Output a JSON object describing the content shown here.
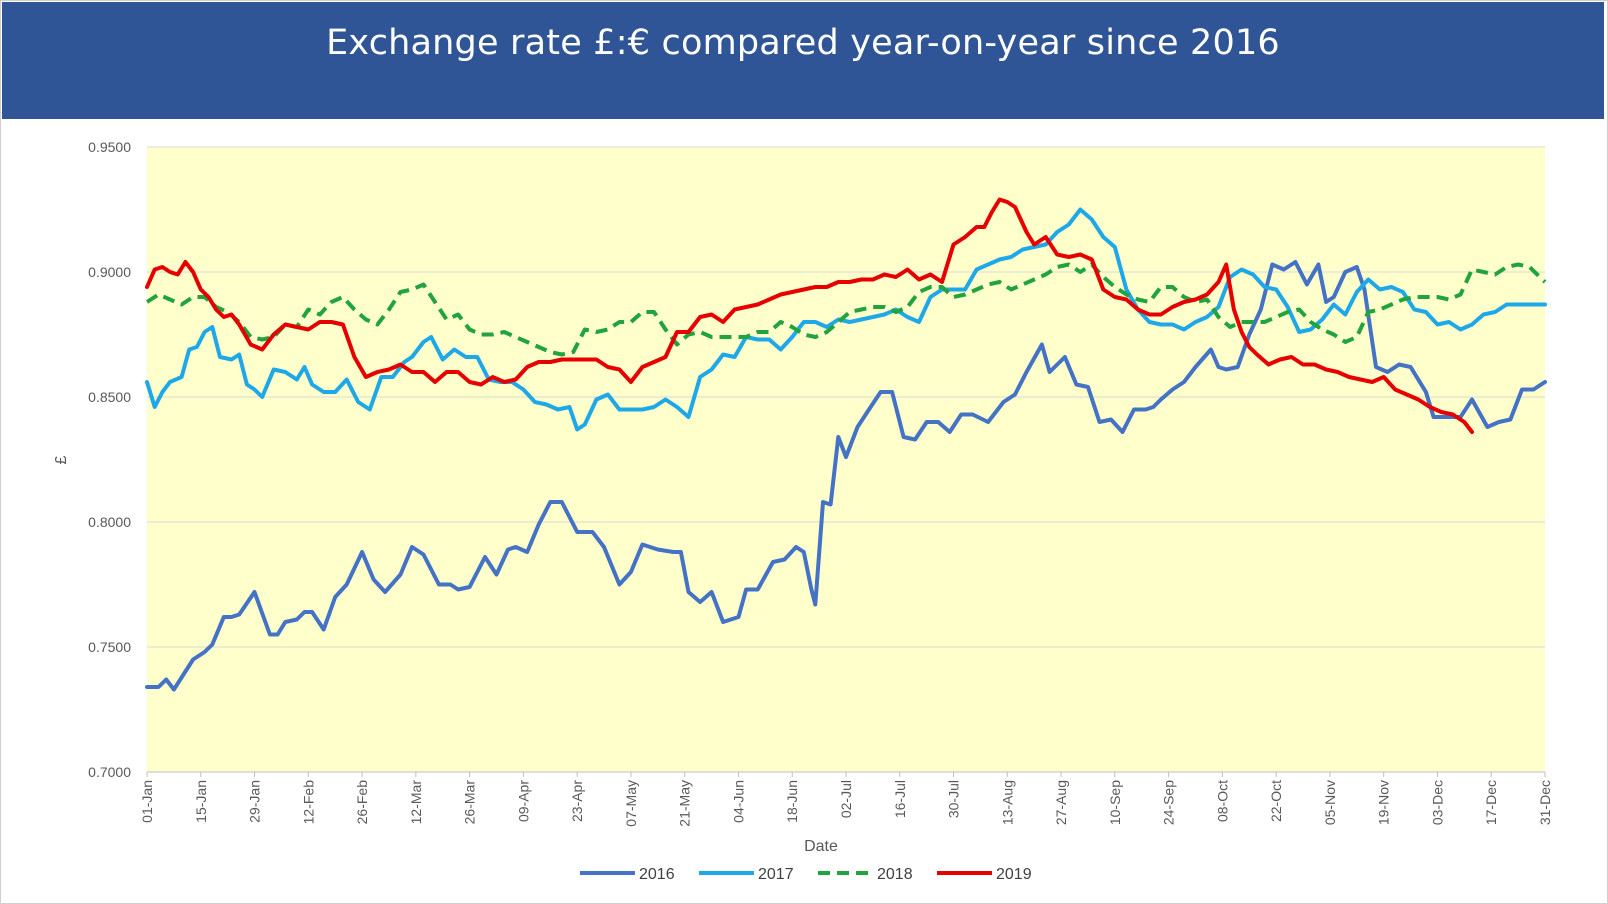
{
  "chart_data": {
    "type": "line",
    "title": "Exchange rate £:€ compared year-on-year since 2016",
    "xlabel": "Date",
    "ylabel": "£",
    "ylim": [
      0.7,
      0.95
    ],
    "yticks": [
      "0.7000",
      "0.7500",
      "0.8000",
      "0.8500",
      "0.9000",
      "0.9500"
    ],
    "xlim": [
      1,
      365
    ],
    "xticks": [
      {
        "day": 1,
        "label": "01-Jan"
      },
      {
        "day": 15,
        "label": "15-Jan"
      },
      {
        "day": 29,
        "label": "29-Jan"
      },
      {
        "day": 43,
        "label": "12-Feb"
      },
      {
        "day": 57,
        "label": "26-Feb"
      },
      {
        "day": 71,
        "label": "12-Mar"
      },
      {
        "day": 85,
        "label": "26-Mar"
      },
      {
        "day": 99,
        "label": "09-Apr"
      },
      {
        "day": 113,
        "label": "23-Apr"
      },
      {
        "day": 127,
        "label": "07-May"
      },
      {
        "day": 141,
        "label": "21-May"
      },
      {
        "day": 155,
        "label": "04-Jun"
      },
      {
        "day": 169,
        "label": "18-Jun"
      },
      {
        "day": 183,
        "label": "02-Jul"
      },
      {
        "day": 197,
        "label": "16-Jul"
      },
      {
        "day": 211,
        "label": "30-Jul"
      },
      {
        "day": 225,
        "label": "13-Aug"
      },
      {
        "day": 239,
        "label": "27-Aug"
      },
      {
        "day": 253,
        "label": "10-Sep"
      },
      {
        "day": 267,
        "label": "24-Sep"
      },
      {
        "day": 281,
        "label": "08-Oct"
      },
      {
        "day": 295,
        "label": "22-Oct"
      },
      {
        "day": 309,
        "label": "05-Nov"
      },
      {
        "day": 323,
        "label": "19-Nov"
      },
      {
        "day": 337,
        "label": "03-Dec"
      },
      {
        "day": 351,
        "label": "17-Dec"
      },
      {
        "day": 365,
        "label": "31-Dec"
      }
    ],
    "grid": true,
    "plot_background": "#FFFFCC",
    "legend_position": "bottom",
    "series": [
      {
        "name": "2016",
        "color": "#4472C4",
        "dash": "solid",
        "x": [
          1,
          4,
          6,
          8,
          13,
          16,
          18,
          21,
          23,
          25,
          29,
          33,
          35,
          37,
          40,
          42,
          44,
          47,
          50,
          53,
          57,
          60,
          63,
          67,
          70,
          73,
          77,
          80,
          82,
          85,
          89,
          92,
          95,
          97,
          100,
          103,
          106,
          109,
          113,
          117,
          120,
          124,
          127,
          130,
          134,
          138,
          140,
          142,
          145,
          148,
          151,
          155,
          157,
          160,
          164,
          167,
          170,
          172,
          174,
          175,
          177,
          179,
          181,
          183,
          186,
          189,
          192,
          195,
          198,
          201,
          204,
          207,
          210,
          213,
          216,
          220,
          224,
          227,
          230,
          234,
          236,
          240,
          243,
          246,
          249,
          252,
          255,
          258,
          261,
          263,
          265,
          268,
          271,
          274,
          278,
          280,
          282,
          285,
          288,
          291,
          294,
          297,
          300,
          303,
          306,
          308,
          310,
          313,
          316,
          318,
          321,
          324,
          327,
          330,
          334,
          336,
          340,
          343,
          346,
          350,
          353,
          356,
          359,
          362,
          365
        ],
        "values": [
          0.734,
          0.734,
          0.737,
          0.733,
          0.745,
          0.748,
          0.751,
          0.762,
          0.762,
          0.763,
          0.772,
          0.755,
          0.755,
          0.76,
          0.761,
          0.764,
          0.764,
          0.757,
          0.77,
          0.775,
          0.788,
          0.777,
          0.772,
          0.779,
          0.79,
          0.787,
          0.775,
          0.775,
          0.773,
          0.774,
          0.786,
          0.779,
          0.789,
          0.79,
          0.788,
          0.799,
          0.808,
          0.808,
          0.796,
          0.796,
          0.79,
          0.775,
          0.78,
          0.791,
          0.789,
          0.788,
          0.788,
          0.772,
          0.768,
          0.772,
          0.76,
          0.762,
          0.773,
          0.773,
          0.784,
          0.785,
          0.79,
          0.788,
          0.773,
          0.767,
          0.808,
          0.807,
          0.834,
          0.826,
          0.838,
          0.845,
          0.852,
          0.852,
          0.834,
          0.833,
          0.84,
          0.84,
          0.836,
          0.843,
          0.843,
          0.84,
          0.848,
          0.851,
          0.86,
          0.871,
          0.86,
          0.866,
          0.855,
          0.854,
          0.84,
          0.841,
          0.836,
          0.845,
          0.845,
          0.846,
          0.849,
          0.853,
          0.856,
          0.862,
          0.869,
          0.862,
          0.861,
          0.862,
          0.875,
          0.885,
          0.903,
          0.901,
          0.904,
          0.895,
          0.903,
          0.888,
          0.89,
          0.9,
          0.902,
          0.893,
          0.862,
          0.86,
          0.863,
          0.862,
          0.852,
          0.842,
          0.842,
          0.842,
          0.849,
          0.838,
          0.84,
          0.841,
          0.853,
          0.853,
          0.856
        ]
      },
      {
        "name": "2017",
        "color": "#1FA8E8",
        "dash": "solid",
        "x": [
          1,
          3,
          5,
          7,
          10,
          12,
          14,
          16,
          18,
          20,
          23,
          25,
          27,
          29,
          31,
          34,
          37,
          40,
          42,
          44,
          47,
          50,
          53,
          56,
          59,
          62,
          65,
          68,
          70,
          73,
          75,
          78,
          81,
          84,
          87,
          90,
          93,
          96,
          99,
          102,
          105,
          108,
          111,
          113,
          115,
          118,
          121,
          124,
          127,
          130,
          133,
          136,
          139,
          142,
          145,
          148,
          151,
          154,
          157,
          160,
          163,
          166,
          169,
          172,
          175,
          178,
          181,
          184,
          187,
          190,
          193,
          196,
          199,
          202,
          205,
          208,
          211,
          214,
          217,
          220,
          223,
          226,
          229,
          232,
          235,
          238,
          241,
          244,
          247,
          250,
          253,
          256,
          259,
          262,
          265,
          268,
          271,
          274,
          277,
          280,
          283,
          286,
          289,
          292,
          295,
          298,
          301,
          304,
          307,
          310,
          313,
          316,
          319,
          322,
          325,
          328,
          331,
          334,
          337,
          340,
          343,
          346,
          349,
          352,
          355,
          358,
          361,
          365
        ],
        "values": [
          0.856,
          0.846,
          0.852,
          0.856,
          0.858,
          0.869,
          0.87,
          0.876,
          0.878,
          0.866,
          0.865,
          0.867,
          0.855,
          0.853,
          0.85,
          0.861,
          0.86,
          0.857,
          0.862,
          0.855,
          0.852,
          0.852,
          0.857,
          0.848,
          0.845,
          0.858,
          0.858,
          0.864,
          0.866,
          0.872,
          0.874,
          0.865,
          0.869,
          0.866,
          0.866,
          0.857,
          0.856,
          0.856,
          0.853,
          0.848,
          0.847,
          0.845,
          0.846,
          0.837,
          0.839,
          0.849,
          0.851,
          0.845,
          0.845,
          0.845,
          0.846,
          0.849,
          0.846,
          0.842,
          0.858,
          0.861,
          0.867,
          0.866,
          0.874,
          0.873,
          0.873,
          0.869,
          0.874,
          0.88,
          0.88,
          0.878,
          0.881,
          0.88,
          0.881,
          0.882,
          0.883,
          0.885,
          0.882,
          0.88,
          0.89,
          0.893,
          0.893,
          0.893,
          0.901,
          0.903,
          0.905,
          0.906,
          0.909,
          0.91,
          0.911,
          0.916,
          0.919,
          0.925,
          0.921,
          0.914,
          0.91,
          0.893,
          0.885,
          0.88,
          0.879,
          0.879,
          0.877,
          0.88,
          0.882,
          0.886,
          0.898,
          0.901,
          0.899,
          0.894,
          0.893,
          0.886,
          0.876,
          0.877,
          0.881,
          0.887,
          0.883,
          0.892,
          0.897,
          0.893,
          0.894,
          0.892,
          0.885,
          0.884,
          0.879,
          0.88,
          0.877,
          0.879,
          0.883,
          0.884,
          0.887,
          0.887,
          0.887,
          0.887
        ]
      },
      {
        "name": "2018",
        "color": "#21A33D",
        "dash": "dashed",
        "x": [
          1,
          4,
          7,
          10,
          13,
          16,
          19,
          22,
          25,
          28,
          31,
          34,
          37,
          40,
          43,
          46,
          49,
          52,
          55,
          58,
          61,
          64,
          67,
          70,
          73,
          76,
          79,
          82,
          85,
          88,
          91,
          94,
          97,
          100,
          103,
          106,
          109,
          112,
          115,
          118,
          121,
          124,
          127,
          130,
          133,
          136,
          139,
          142,
          145,
          148,
          151,
          154,
          157,
          160,
          163,
          166,
          169,
          172,
          175,
          178,
          181,
          184,
          187,
          190,
          193,
          196,
          199,
          202,
          205,
          208,
          211,
          214,
          217,
          220,
          223,
          226,
          229,
          232,
          235,
          238,
          241,
          244,
          247,
          250,
          253,
          256,
          259,
          262,
          265,
          268,
          271,
          274,
          277,
          280,
          283,
          286,
          289,
          292,
          295,
          298,
          301,
          304,
          307,
          310,
          313,
          316,
          319,
          322,
          325,
          328,
          331,
          334,
          337,
          340,
          343,
          346,
          349,
          352,
          355,
          358,
          361,
          365
        ],
        "values": [
          0.888,
          0.891,
          0.889,
          0.887,
          0.89,
          0.89,
          0.886,
          0.884,
          0.88,
          0.874,
          0.873,
          0.874,
          0.879,
          0.878,
          0.885,
          0.883,
          0.888,
          0.89,
          0.885,
          0.881,
          0.879,
          0.885,
          0.892,
          0.893,
          0.895,
          0.888,
          0.881,
          0.883,
          0.877,
          0.875,
          0.875,
          0.876,
          0.874,
          0.872,
          0.87,
          0.868,
          0.867,
          0.868,
          0.877,
          0.876,
          0.877,
          0.88,
          0.88,
          0.884,
          0.884,
          0.877,
          0.871,
          0.875,
          0.876,
          0.874,
          0.874,
          0.874,
          0.874,
          0.876,
          0.876,
          0.88,
          0.878,
          0.875,
          0.874,
          0.876,
          0.88,
          0.884,
          0.885,
          0.886,
          0.886,
          0.884,
          0.886,
          0.892,
          0.894,
          0.894,
          0.89,
          0.891,
          0.893,
          0.895,
          0.896,
          0.893,
          0.895,
          0.897,
          0.899,
          0.902,
          0.903,
          0.9,
          0.903,
          0.898,
          0.894,
          0.891,
          0.889,
          0.888,
          0.894,
          0.894,
          0.89,
          0.888,
          0.889,
          0.882,
          0.878,
          0.88,
          0.88,
          0.88,
          0.882,
          0.884,
          0.885,
          0.88,
          0.877,
          0.875,
          0.872,
          0.874,
          0.884,
          0.885,
          0.887,
          0.889,
          0.89,
          0.89,
          0.89,
          0.889,
          0.891,
          0.901,
          0.9,
          0.899,
          0.902,
          0.903,
          0.902,
          0.896
        ]
      },
      {
        "name": "2019",
        "color": "#E60000",
        "dash": "solid",
        "x": [
          1,
          3,
          5,
          7,
          9,
          11,
          13,
          15,
          17,
          19,
          21,
          23,
          25,
          28,
          31,
          34,
          37,
          40,
          43,
          46,
          49,
          52,
          55,
          58,
          61,
          64,
          67,
          70,
          73,
          76,
          79,
          82,
          85,
          88,
          91,
          94,
          97,
          100,
          103,
          106,
          109,
          112,
          115,
          118,
          121,
          124,
          127,
          130,
          133,
          136,
          139,
          142,
          145,
          148,
          151,
          154,
          157,
          160,
          163,
          166,
          169,
          172,
          175,
          178,
          181,
          184,
          187,
          190,
          193,
          196,
          199,
          202,
          205,
          208,
          211,
          214,
          217,
          219,
          221,
          223,
          225,
          227,
          230,
          232,
          235,
          238,
          241,
          244,
          247,
          250,
          253,
          256,
          259,
          262,
          265,
          268,
          271,
          274,
          277,
          280,
          282,
          284,
          286,
          288,
          290,
          293,
          296,
          299,
          302,
          305,
          308,
          311,
          314,
          317,
          320,
          323,
          326,
          329,
          332,
          335,
          338,
          341,
          344,
          346
        ],
        "values": [
          0.894,
          0.901,
          0.902,
          0.9,
          0.899,
          0.904,
          0.9,
          0.893,
          0.89,
          0.885,
          0.882,
          0.883,
          0.879,
          0.871,
          0.869,
          0.875,
          0.879,
          0.878,
          0.877,
          0.88,
          0.88,
          0.879,
          0.866,
          0.858,
          0.86,
          0.861,
          0.863,
          0.86,
          0.86,
          0.856,
          0.86,
          0.86,
          0.856,
          0.855,
          0.858,
          0.856,
          0.857,
          0.862,
          0.864,
          0.864,
          0.865,
          0.865,
          0.865,
          0.865,
          0.862,
          0.861,
          0.856,
          0.862,
          0.864,
          0.866,
          0.876,
          0.876,
          0.882,
          0.883,
          0.88,
          0.885,
          0.886,
          0.887,
          0.889,
          0.891,
          0.892,
          0.893,
          0.894,
          0.894,
          0.896,
          0.896,
          0.897,
          0.897,
          0.899,
          0.898,
          0.901,
          0.897,
          0.899,
          0.896,
          0.911,
          0.914,
          0.918,
          0.918,
          0.924,
          0.929,
          0.928,
          0.926,
          0.916,
          0.911,
          0.914,
          0.907,
          0.906,
          0.907,
          0.905,
          0.893,
          0.89,
          0.889,
          0.885,
          0.883,
          0.883,
          0.886,
          0.888,
          0.889,
          0.891,
          0.896,
          0.903,
          0.885,
          0.876,
          0.87,
          0.867,
          0.863,
          0.865,
          0.866,
          0.863,
          0.863,
          0.861,
          0.86,
          0.858,
          0.857,
          0.856,
          0.858,
          0.853,
          0.851,
          0.849,
          0.846,
          0.844,
          0.843,
          0.84,
          0.836
        ]
      }
    ]
  }
}
